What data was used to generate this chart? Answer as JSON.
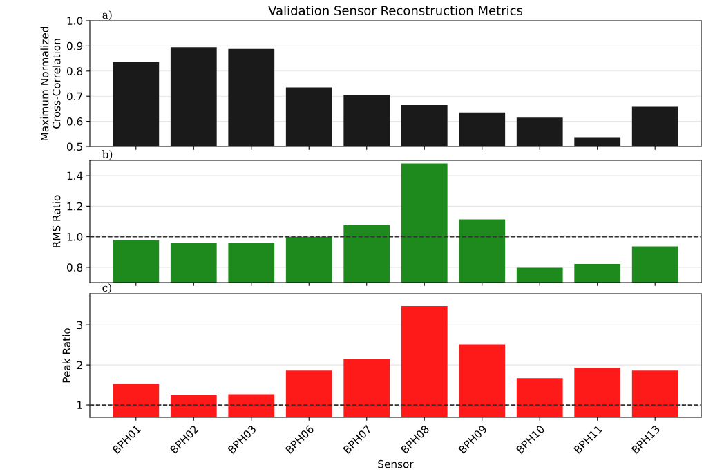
{
  "chart_data": [
    {
      "type": "bar",
      "title": "Validation Sensor Reconstruction Metrics",
      "ylabel": "Maximum Normalized\nCross-Correlation",
      "annotations": [
        "a)"
      ],
      "categories": [
        null,
        null,
        null,
        null,
        null,
        null,
        null,
        null,
        null,
        null
      ],
      "series": [
        {
          "color": "#1a1a1a",
          "values": [
            0.835,
            0.895,
            0.888,
            0.735,
            0.705,
            0.665,
            0.635,
            0.615,
            0.537,
            0.658
          ]
        }
      ],
      "ylim": [
        0.5,
        1.0
      ],
      "yticks": [
        0.5,
        0.6,
        0.7,
        0.8,
        0.9,
        {
          "value": 1.0,
          "label": "1.0"
        }
      ],
      "grid": "y",
      "tick_labels": "y"
    },
    {
      "type": "bar",
      "ylabel": "RMS Ratio",
      "annotations": [
        "b)"
      ],
      "categories": [
        null,
        null,
        null,
        null,
        null,
        null,
        null,
        null,
        null,
        null
      ],
      "series": [
        {
          "color": "#1e8a1e",
          "values": [
            0.98,
            0.96,
            0.962,
            1.0,
            1.075,
            1.48,
            1.113,
            0.797,
            0.822,
            0.937
          ]
        }
      ],
      "ylim": [
        0.7,
        1.5
      ],
      "yticks": [
        0.8,
        {
          "value": 1.0,
          "label": "1.0"
        },
        1.2,
        1.4
      ],
      "grid": "y",
      "tick_labels": "y",
      "ref_lines": [
        {
          "axis": "y",
          "value": 1.0,
          "color": "#333333",
          "line_style": "dashed"
        }
      ]
    },
    {
      "type": "bar",
      "ylabel": "Peak Ratio",
      "xlabel": "Sensor",
      "annotations": [
        "c)"
      ],
      "categories": [
        "BPH01",
        "BPH02",
        "BPH03",
        "BPH06",
        "BPH07",
        "BPH08",
        "BPH09",
        "BPH10",
        "BPH11",
        "BPH13"
      ],
      "series": [
        {
          "color": "#ff1a1a",
          "values": [
            1.52,
            1.26,
            1.27,
            1.86,
            2.14,
            3.47,
            2.51,
            1.67,
            1.93,
            1.86
          ]
        }
      ],
      "ylim": [
        0.69,
        3.78
      ],
      "yticks": [
        1,
        2,
        3
      ],
      "grid": "y",
      "ref_lines": [
        {
          "axis": "y",
          "value": 1,
          "color": "#333333",
          "line_style": "dashed"
        }
      ]
    }
  ]
}
